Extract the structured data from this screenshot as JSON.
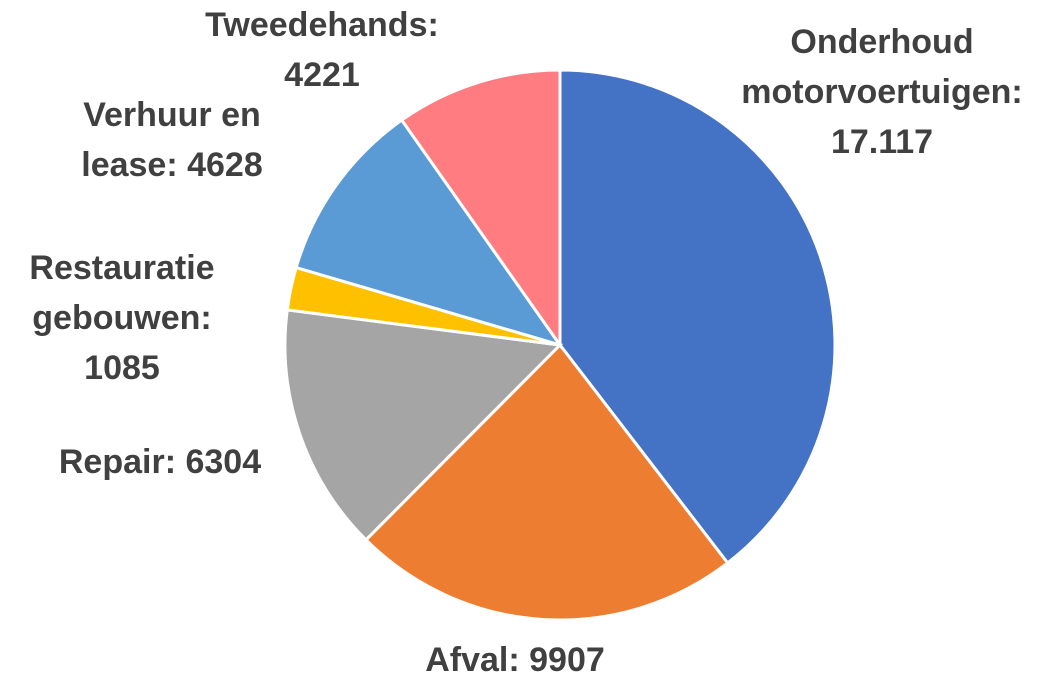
{
  "chart_data": {
    "type": "pie",
    "values": [
      17117,
      9907,
      6304,
      1085,
      4628,
      4221
    ],
    "value_labels": [
      "Onderhoud motorvoertuigen: 17.117",
      "Afval: 9907",
      "Repair: 6304",
      "Restauratie gebouwen: 1085",
      "Verhuur en lease: 4628",
      "Tweedehands: 4221"
    ],
    "colors": [
      "#4472c4",
      "#ed7d31",
      "#a5a5a5",
      "#ffc000",
      "#5b9bd5",
      "#ff7c80"
    ]
  }
}
